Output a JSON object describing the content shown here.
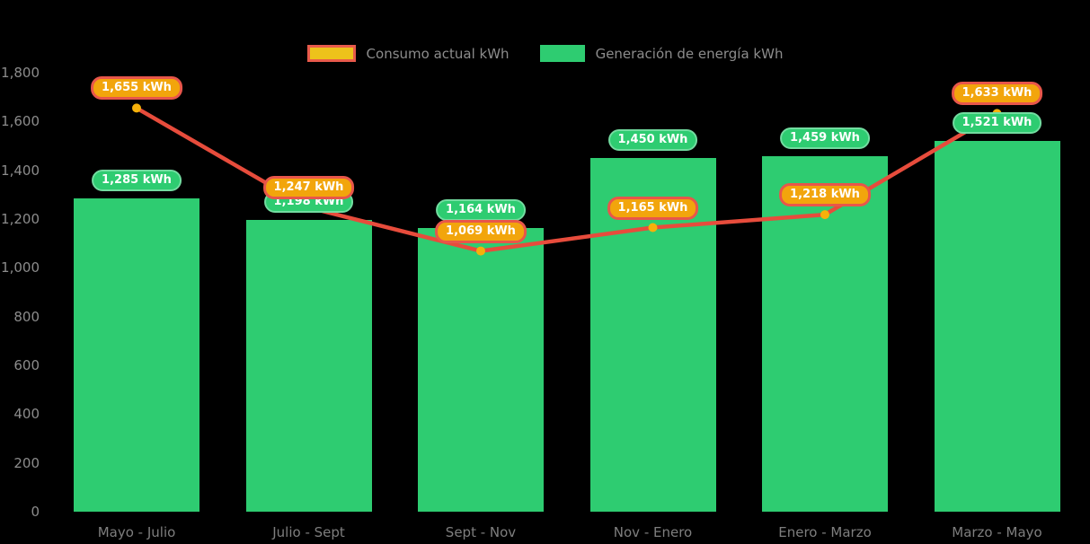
{
  "legend": {
    "items": [
      {
        "label": "Consumo actual kWh",
        "swatch": "consumption"
      },
      {
        "label": "Generación de energía kWh",
        "swatch": "generation"
      }
    ]
  },
  "chart_data": {
    "type": "bar+line",
    "title": "",
    "xlabel": "",
    "ylabel": "",
    "categories": [
      "Mayo - Julio",
      "Julio - Sept",
      "Sept - Nov",
      "Nov - Enero",
      "Enero - Marzo",
      "Marzo - Mayo"
    ],
    "series": [
      {
        "name": "Consumo actual kWh",
        "type": "line",
        "values": [
          1655,
          1247,
          1069,
          1165,
          1218,
          1633
        ],
        "point_labels": [
          "1,655 kWh",
          "1,247 kWh",
          "1,069 kWh",
          "1,165 kWh",
          "1,218 kWh",
          "1,633 kWh"
        ],
        "color": "#E74C3C",
        "point_color": "#F6B10A",
        "label_bg": "#F2A50C",
        "label_border": "#E8564A"
      },
      {
        "name": "Generación de energía kWh",
        "type": "bar",
        "values": [
          1285,
          1198,
          1164,
          1450,
          1459,
          1521
        ],
        "point_labels": [
          "1,285 kWh",
          "1,198 kWh",
          "1,164 kWh",
          "1,450 kWh",
          "1,459 kWh",
          "1,521 kWh"
        ],
        "color": "#2ECC71",
        "label_bg": "#2ECC71",
        "label_border": "#72DCA0"
      }
    ],
    "ylim": [
      0,
      1800
    ],
    "ytick_values": [
      0,
      200,
      400,
      600,
      800,
      1000,
      1200,
      1400,
      1600,
      1800
    ],
    "ytick_labels": [
      "0",
      "200",
      "400",
      "600",
      "800",
      "1,000",
      "1,200",
      "1,400",
      "1,600",
      "1,800"
    ],
    "grid": false,
    "legend_position": "top-center",
    "background": "#000000"
  }
}
